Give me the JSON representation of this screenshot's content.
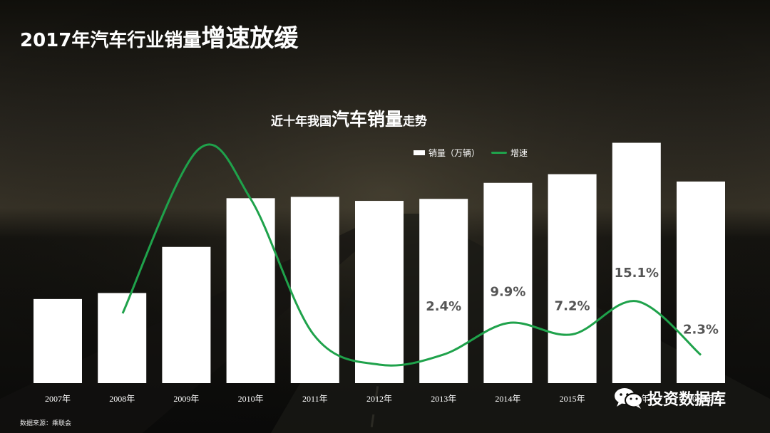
{
  "title": {
    "main": "2017年汽车行业销量",
    "emphasis": "增速放缓"
  },
  "subtitle": {
    "main": "近十年我国",
    "emphasis": "汽车销量",
    "tail": "走势"
  },
  "source": "数据来源：乘联会",
  "watermark": {
    "text": "投资数据库",
    "icon": "wechat-icon"
  },
  "colors": {
    "bar": "#ffffff",
    "line": "#1fa24b",
    "label": "#555555",
    "text": "#ffffff"
  },
  "chart_data": {
    "type": "bar",
    "categories": [
      "2007年",
      "2008年",
      "2009年",
      "2010年",
      "2011年",
      "2012年",
      "2013年",
      "2014年",
      "2015年",
      "2016年",
      "2017年"
    ],
    "series": [
      {
        "name": "销量（万辆）",
        "type": "bar",
        "values": [
          630,
          675,
          1020,
          1385,
          1395,
          1365,
          1380,
          1500,
          1565,
          1800,
          1510
        ]
      },
      {
        "name": "增速",
        "type": "line",
        "values": [
          null,
          null,
          null,
          null,
          null,
          null,
          2.4,
          9.9,
          7.2,
          15.1,
          2.3
        ]
      }
    ],
    "data_labels": [
      {
        "index": 6,
        "text": "2.4%"
      },
      {
        "index": 7,
        "text": "9.9%"
      },
      {
        "index": 8,
        "text": "7.2%"
      },
      {
        "index": 9,
        "text": "15.1%"
      },
      {
        "index": 10,
        "text": "2.3%"
      }
    ],
    "legend": {
      "position": "top-right",
      "entries": [
        "销量（万辆）",
        "增速"
      ]
    },
    "grid": false
  }
}
